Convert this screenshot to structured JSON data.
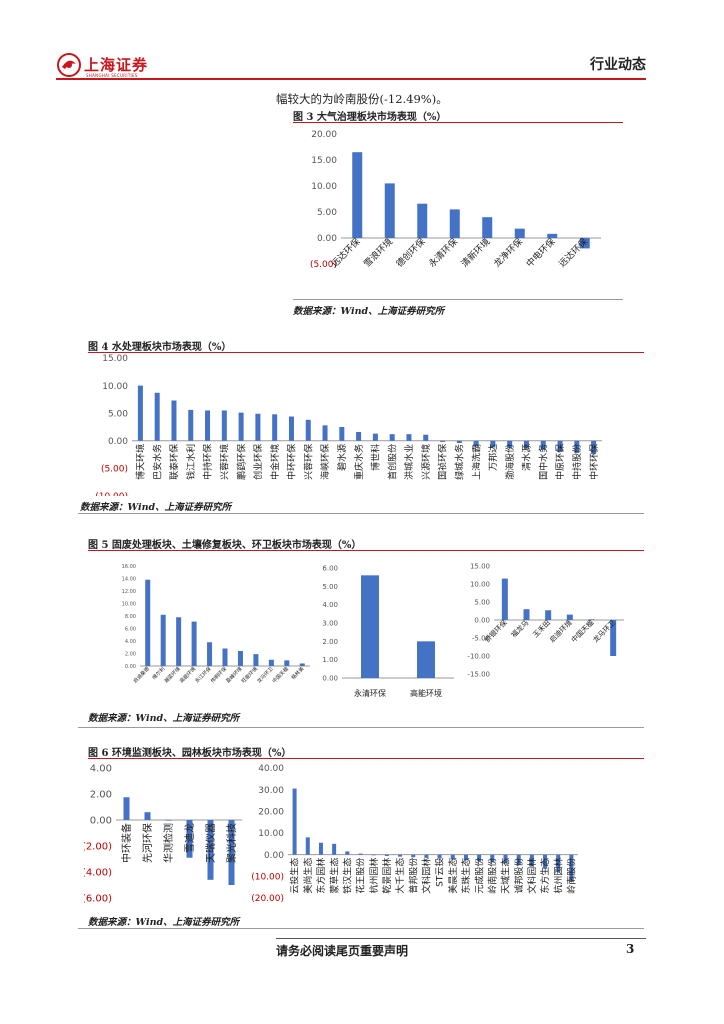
{
  "header": {
    "logo_text": "上海证券",
    "logo_sub": "SHANGHAI SECURITIES",
    "section": "行业动态"
  },
  "intro_text": "幅较大的为岭南股份(-12.49%)。",
  "figures": {
    "fig3": {
      "title": "图 3 大气治理板块市场表现（%）",
      "source": "数据来源：Wind、上海证券研究所"
    },
    "fig4": {
      "title": "图 4 水处理板块市场表现（%）",
      "source": "数据来源：Wind、上海证券研究所"
    },
    "fig5": {
      "title": "图 5 固废处理板块、土壤修复板块、环卫板块市场表现（%）",
      "source": "数据来源：Wind、上海证券研究所"
    },
    "fig6": {
      "title": "图 6 环境监测板块、园林板块市场表现（%）",
      "source": "数据来源：Wind、上海证券研究所"
    }
  },
  "footer": {
    "notice": "请务必阅读尾页重要声明",
    "page": "3"
  },
  "colors": {
    "bar": "#4472c4",
    "red": "#c8161d",
    "neg_tick": "#c00000"
  },
  "chart_data": [
    {
      "id": "fig3",
      "type": "bar",
      "categories": [
        "远达环保",
        "雪浪环境",
        "德创环保",
        "永清环保",
        "清新环境",
        "龙净环保",
        "中电环保",
        "远达环保"
      ],
      "values": [
        16.5,
        10.5,
        6.6,
        5.5,
        4.0,
        1.8,
        0.8,
        -2.0
      ],
      "yticks": [
        20,
        15,
        10,
        5,
        0,
        -5
      ],
      "ytick_labels": [
        "20.00",
        "15.00",
        "10.00",
        "5.00",
        "0.00",
        "(5.00)"
      ],
      "ylim": [
        -5,
        20
      ],
      "grid": false
    },
    {
      "id": "fig4",
      "type": "bar",
      "categories": [
        "博天环境",
        "巴安水务",
        "联泰环保",
        "钱江水利",
        "中持环保",
        "兴蓉环境",
        "鹏鹞环保",
        "创业环保",
        "中金环境",
        "中环环保",
        "兴蓉环保",
        "海峡环保",
        "碧水源",
        "重庆水务",
        "博世科",
        "首创股份",
        "洪城水业",
        "兴源环境",
        "国祯环保",
        "绿城水务",
        "上海洗霸",
        "万邦达",
        "渤海股份",
        "清水源",
        "国中水务",
        "中原环保",
        "中持股份",
        "中环环保"
      ],
      "values": [
        10.0,
        8.7,
        7.3,
        5.6,
        5.5,
        5.5,
        5.1,
        4.9,
        4.8,
        4.4,
        3.8,
        2.8,
        2.5,
        1.6,
        1.3,
        1.2,
        1.2,
        1.1,
        -0.2,
        -0.4,
        -1.0,
        -1.2,
        -1.3,
        -1.4,
        -1.6,
        -2.0,
        -2.2,
        -2.4
      ],
      "yticks": [
        15,
        10,
        5,
        0,
        -5,
        -10
      ],
      "ytick_labels": [
        "15.00",
        "10.00",
        "5.00",
        "0.00",
        "(5.00)",
        "(10.00)"
      ],
      "ylim": [
        -10,
        15
      ],
      "grid": false
    },
    {
      "id": "fig5a",
      "type": "bar",
      "categories": [
        "启迪桑德",
        "维尔利",
        "瀚蓝环境",
        "高能环境",
        "东江环保",
        "伟明环保",
        "盈峰环境",
        "旺能环境",
        "龙马环卫",
        "中国天楹",
        "格林美"
      ],
      "values": [
        13.8,
        8.2,
        7.8,
        7.1,
        3.8,
        2.8,
        2.4,
        1.9,
        1.0,
        0.9,
        0.4
      ],
      "yticks": [
        0,
        2,
        4,
        6,
        8,
        10,
        12,
        14,
        16
      ],
      "ytick_labels": [
        "0.00",
        "2.00",
        "4.00",
        "6.00",
        "8.00",
        "10.00",
        "12.00",
        "14.00",
        "16.00"
      ],
      "ylim": [
        0,
        16
      ],
      "grid": false
    },
    {
      "id": "fig5b",
      "type": "bar",
      "categories": [
        "永清环保",
        "高能环境"
      ],
      "values": [
        5.6,
        2.0
      ],
      "yticks": [
        0,
        1,
        2,
        3,
        4,
        5,
        6
      ],
      "ytick_labels": [
        "0.00",
        "1.00",
        "2.00",
        "3.00",
        "4.00",
        "5.00",
        "6.00"
      ],
      "ylim": [
        0,
        6
      ],
      "grid": false
    },
    {
      "id": "fig5c",
      "type": "bar",
      "categories": [
        "侨银环保",
        "福龙马",
        "玉禾田",
        "启迪环境",
        "中国天楹",
        "龙马环卫"
      ],
      "values": [
        11.5,
        3.0,
        2.7,
        1.5,
        0.2,
        -10.0
      ],
      "yticks": [
        15,
        10,
        5,
        0,
        -5,
        -10,
        -15
      ],
      "ytick_labels": [
        "15.00",
        "10.00",
        "5.00",
        "0.00",
        "-5.00",
        "-10.00",
        "-15.00"
      ],
      "ylim": [
        -15,
        15
      ],
      "grid": false
    },
    {
      "id": "fig6a",
      "type": "bar",
      "categories": [
        "中环装备",
        "先河环保",
        "华测检测",
        "雪迪龙",
        "天瑞仪器",
        "聚光科技"
      ],
      "values": [
        1.75,
        0.6,
        -0.05,
        -2.9,
        -4.6,
        -5.0
      ],
      "yticks": [
        4,
        2,
        0,
        -2,
        -4,
        -6
      ],
      "ytick_labels": [
        "4.00",
        "2.00",
        "0.00",
        "(2.00)",
        "(4.00)",
        "(6.00)"
      ],
      "ylim": [
        -6,
        4
      ],
      "grid": false
    },
    {
      "id": "fig6b",
      "type": "bar",
      "categories": [
        "云投生态",
        "美尚生态",
        "东方园林",
        "蒙草生态",
        "铁汉生态",
        "花王股份",
        "杭州园林",
        "乾景园林",
        "大千生态",
        "普邦股份",
        "文科园林",
        "ST云投",
        "美晨生态",
        "东珠生态",
        "元成股份",
        "岭南股份",
        "天域生态",
        "诚邦股份",
        "文科园林",
        "东方生态",
        "杭州园林",
        "岭南股份"
      ],
      "values": [
        30.5,
        8.0,
        5.5,
        5.0,
        1.5,
        0.5,
        -0.3,
        -0.6,
        -0.9,
        -1.2,
        -1.5,
        -1.8,
        -2.2,
        -2.6,
        -3.0,
        -3.5,
        -4.0,
        -4.8,
        -5.5,
        -6.5,
        -8.0,
        -12.49
      ],
      "yticks": [
        40,
        30,
        20,
        10,
        0,
        -10,
        -20
      ],
      "ytick_labels": [
        "40.00",
        "30.00",
        "20.00",
        "10.00",
        "0.00",
        "(10.00)",
        "(20.00)"
      ],
      "ylim": [
        -20,
        40
      ],
      "grid": false
    }
  ]
}
